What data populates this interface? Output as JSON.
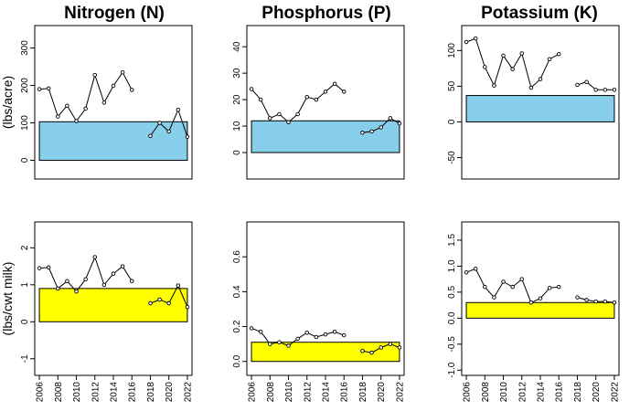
{
  "figure": {
    "column_titles": [
      "Nitrogen (N)",
      "Phosphorus (P)",
      "Potassium (K)"
    ],
    "row_labels": [
      "(lbs/acre)",
      "(lbs/cwt milk)"
    ]
  },
  "chart_data": [
    {
      "type": "line",
      "row": 0,
      "col": 0,
      "title": "Nitrogen (N)",
      "ylabel": "(lbs/acre)",
      "x": [
        2006,
        2007,
        2008,
        2009,
        2010,
        2011,
        2012,
        2013,
        2014,
        2015,
        2016,
        2017,
        2018,
        2019,
        2020,
        2021,
        2022
      ],
      "values": [
        190,
        192,
        117,
        146,
        105,
        138,
        228,
        154,
        199,
        235,
        188,
        null,
        65,
        100,
        77,
        135,
        63
      ],
      "band": {
        "from": 0,
        "to": 103,
        "color": "#87ceeb"
      },
      "ylim": [
        -50,
        360
      ],
      "yticks": [
        "0",
        "100",
        "200",
        "300"
      ],
      "ytick_values": [
        0,
        100,
        200,
        300
      ],
      "xlim": [
        2005.5,
        2022.5
      ],
      "show_xticks": false
    },
    {
      "type": "line",
      "row": 0,
      "col": 1,
      "title": "Phosphorus (P)",
      "x": [
        2006,
        2007,
        2008,
        2009,
        2010,
        2011,
        2012,
        2013,
        2014,
        2015,
        2016,
        2017,
        2018,
        2019,
        2020,
        2021,
        2022
      ],
      "values": [
        24,
        20,
        13,
        14.5,
        11.5,
        14.5,
        21,
        20,
        23,
        26,
        23,
        null,
        7.5,
        8,
        9.5,
        13,
        11
      ],
      "band": {
        "from": 0,
        "to": 12,
        "color": "#87ceeb"
      },
      "ylim": [
        -10,
        48
      ],
      "yticks": [
        "0",
        "10",
        "20",
        "30",
        "40"
      ],
      "ytick_values": [
        0,
        10,
        20,
        30,
        40
      ],
      "xlim": [
        2005.5,
        2022.5
      ],
      "show_xticks": false
    },
    {
      "type": "line",
      "row": 0,
      "col": 2,
      "title": "Potassium (K)",
      "x": [
        2006,
        2007,
        2008,
        2009,
        2010,
        2011,
        2012,
        2013,
        2014,
        2015,
        2016,
        2017,
        2018,
        2019,
        2020,
        2021,
        2022
      ],
      "values": [
        112,
        117,
        77,
        51,
        93,
        74,
        96,
        48,
        60,
        88,
        95,
        null,
        52,
        56,
        45,
        45,
        45
      ],
      "band": {
        "from": 0,
        "to": 37,
        "color": "#87ceeb"
      },
      "ylim": [
        -80,
        135
      ],
      "yticks": [
        "-50",
        "0",
        "50",
        "100"
      ],
      "ytick_values": [
        -50,
        0,
        50,
        100
      ],
      "xlim": [
        2005.5,
        2022.5
      ],
      "show_xticks": false
    },
    {
      "type": "line",
      "row": 1,
      "col": 0,
      "ylabel": "(lbs/cwt milk)",
      "x": [
        2006,
        2007,
        2008,
        2009,
        2010,
        2011,
        2012,
        2013,
        2014,
        2015,
        2016,
        2017,
        2018,
        2019,
        2020,
        2021,
        2022
      ],
      "values": [
        1.45,
        1.47,
        0.9,
        1.1,
        0.82,
        1.15,
        1.75,
        1.0,
        1.3,
        1.5,
        1.1,
        null,
        0.5,
        0.6,
        0.5,
        0.98,
        0.4
      ],
      "band": {
        "from": 0,
        "to": 0.9,
        "color": "#ffff00"
      },
      "ylim": [
        -1.45,
        2.7
      ],
      "yticks": [
        "-1",
        "0",
        "1",
        "2"
      ],
      "ytick_values": [
        -1,
        0,
        1,
        2
      ],
      "xlim": [
        2005.5,
        2022.5
      ],
      "show_xticks": true,
      "xtick_labels": [
        "2006",
        "2008",
        "2010",
        "2012",
        "2014",
        "2016",
        "2018",
        "2020",
        "2022"
      ],
      "xtick_values": [
        2006,
        2008,
        2010,
        2012,
        2014,
        2016,
        2018,
        2020,
        2022
      ]
    },
    {
      "type": "line",
      "row": 1,
      "col": 1,
      "x": [
        2006,
        2007,
        2008,
        2009,
        2010,
        2011,
        2012,
        2013,
        2014,
        2015,
        2016,
        2017,
        2018,
        2019,
        2020,
        2021,
        2022
      ],
      "values": [
        0.19,
        0.17,
        0.1,
        0.11,
        0.09,
        0.13,
        0.165,
        0.14,
        0.155,
        0.17,
        0.15,
        null,
        0.06,
        0.05,
        0.08,
        0.1,
        0.08
      ],
      "band": {
        "from": 0,
        "to": 0.11,
        "color": "#ffff00"
      },
      "ylim": [
        -0.08,
        0.8
      ],
      "yticks": [
        "0.0",
        "0.2",
        "0.4",
        "0.6"
      ],
      "ytick_values": [
        0,
        0.2,
        0.4,
        0.6
      ],
      "xlim": [
        2005.5,
        2022.5
      ],
      "show_xticks": true,
      "xtick_labels": [
        "2006",
        "2008",
        "2010",
        "2012",
        "2014",
        "2016",
        "2018",
        "2020",
        "2022"
      ],
      "xtick_values": [
        2006,
        2008,
        2010,
        2012,
        2014,
        2016,
        2018,
        2020,
        2022
      ]
    },
    {
      "type": "line",
      "row": 1,
      "col": 2,
      "x": [
        2006,
        2007,
        2008,
        2009,
        2010,
        2011,
        2012,
        2013,
        2014,
        2015,
        2016,
        2017,
        2018,
        2019,
        2020,
        2021,
        2022
      ],
      "values": [
        0.88,
        0.95,
        0.6,
        0.4,
        0.7,
        0.6,
        0.75,
        0.3,
        0.38,
        0.58,
        0.6,
        null,
        0.4,
        0.35,
        0.32,
        0.32,
        0.3
      ],
      "band": {
        "from": 0,
        "to": 0.3,
        "color": "#ffff00"
      },
      "ylim": [
        -1.1,
        1.85
      ],
      "yticks": [
        "-1.0",
        "-0.5",
        "0.0",
        "0.5",
        "1.0",
        "1.5"
      ],
      "ytick_values": [
        -1,
        -0.5,
        0,
        0.5,
        1,
        1.5
      ],
      "xlim": [
        2005.5,
        2022.5
      ],
      "show_xticks": true,
      "xtick_labels": [
        "2006",
        "2008",
        "2010",
        "2012",
        "2014",
        "2016",
        "2018",
        "2020",
        "2022"
      ],
      "xtick_values": [
        2006,
        2008,
        2010,
        2012,
        2014,
        2016,
        2018,
        2020,
        2022
      ]
    }
  ]
}
